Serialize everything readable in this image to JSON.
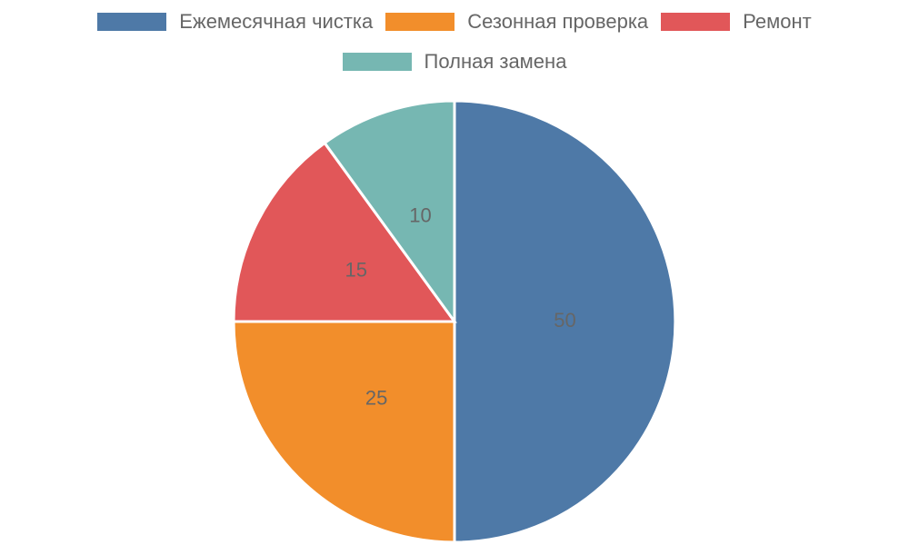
{
  "chart_data": {
    "type": "pie",
    "categories": [
      "Ежемесячная чистка",
      "Сезонная проверка",
      "Ремонт",
      "Полная замена"
    ],
    "values": [
      50,
      25,
      15,
      10
    ],
    "colors": [
      "#4e79a7",
      "#f28e2b",
      "#e15759",
      "#76b7b2"
    ],
    "legend": "top"
  }
}
